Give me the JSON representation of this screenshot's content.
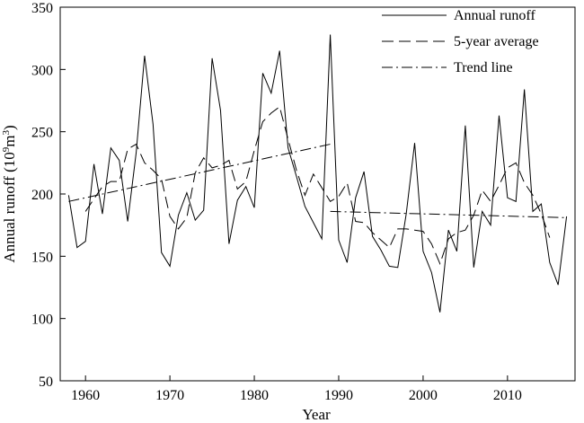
{
  "chart_data": {
    "type": "line",
    "xlabel": "Year",
    "ylabel_main": "Annual runoff (10",
    "ylabel_sup": "9",
    "ylabel_unit": "m",
    "ylabel_unit_sup": "3",
    "ylabel_close": ")",
    "xlim": [
      1957,
      2018
    ],
    "ylim": [
      50,
      350
    ],
    "xticks": [
      1960,
      1970,
      1980,
      1990,
      2000,
      2010
    ],
    "yticks": [
      50,
      100,
      150,
      200,
      250,
      300,
      350
    ],
    "grid": false,
    "legend_position": "top-right",
    "series": [
      {
        "name": "Annual runoff",
        "style": "solid",
        "x": [
          1958,
          1959,
          1960,
          1961,
          1962,
          1963,
          1964,
          1965,
          1966,
          1967,
          1968,
          1969,
          1970,
          1971,
          1972,
          1973,
          1974,
          1975,
          1976,
          1977,
          1978,
          1979,
          1980,
          1981,
          1982,
          1983,
          1984,
          1985,
          1986,
          1987,
          1988,
          1989,
          1990,
          1991,
          1992,
          1993,
          1994,
          1995,
          1996,
          1997,
          1998,
          1999,
          2000,
          2001,
          2002,
          2003,
          2004,
          2005,
          2006,
          2007,
          2008,
          2009,
          2010,
          2011,
          2012,
          2013,
          2014,
          2015,
          2016,
          2017
        ],
        "y": [
          199,
          157,
          162,
          224,
          184,
          237,
          227,
          178,
          233,
          311,
          256,
          153,
          142,
          183,
          201,
          179,
          187,
          309,
          267,
          160,
          195,
          206,
          189,
          297,
          281,
          315,
          237,
          214,
          190,
          177,
          164,
          328,
          163,
          145,
          197,
          218,
          166,
          155,
          142,
          141,
          184,
          241,
          154,
          137,
          105,
          171,
          154,
          255,
          141,
          186,
          175,
          263,
          197,
          194,
          284,
          186,
          192,
          145,
          127,
          182
        ]
      },
      {
        "name": "5-year average",
        "style": "dashed",
        "x": [
          1960,
          1961,
          1962,
          1963,
          1964,
          1965,
          1966,
          1967,
          1968,
          1969,
          1970,
          1971,
          1972,
          1973,
          1974,
          1975,
          1976,
          1977,
          1978,
          1979,
          1980,
          1981,
          1982,
          1983,
          1984,
          1985,
          1986,
          1987,
          1988,
          1989,
          1990,
          1991,
          1992,
          1993,
          1994,
          1995,
          1996,
          1997,
          1998,
          1999,
          2000,
          2001,
          2002,
          2003,
          2004,
          2005,
          2006,
          2007,
          2008,
          2009,
          2010,
          2011,
          2012,
          2013,
          2014,
          2015
        ],
        "y": [
          186,
          196,
          206,
          210,
          210,
          236,
          240,
          225,
          219,
          212,
          182,
          172,
          181,
          217,
          229,
          221,
          223,
          227,
          204,
          210,
          235,
          258,
          265,
          270,
          244,
          219,
          199,
          216,
          205,
          194,
          198,
          209,
          178,
          177,
          169,
          163,
          157,
          172,
          172,
          171,
          170,
          160,
          144,
          164,
          169,
          171,
          183,
          203,
          194,
          207,
          221,
          225,
          209,
          199,
          184,
          165
        ]
      },
      {
        "name": "Trend line",
        "style": "dashdot",
        "segments": [
          {
            "x": [
              1958,
              1989
            ],
            "y": [
              194,
              240
            ]
          },
          {
            "x": [
              1989,
              2017
            ],
            "y": [
              186,
              181
            ]
          }
        ]
      }
    ]
  }
}
